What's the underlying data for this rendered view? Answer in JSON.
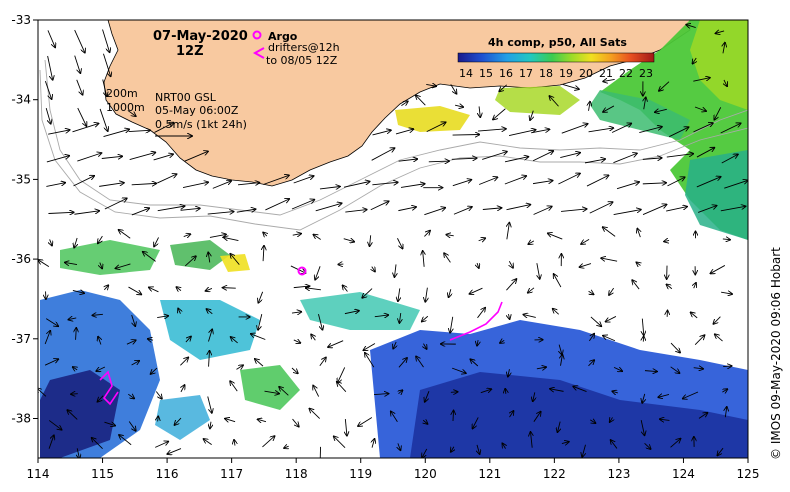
{
  "map": {
    "date_label": "07-May-2020",
    "time_label": "12Z",
    "argo_label": "Argo",
    "drifters_label": "drifters@12h",
    "drifters_sub": "to 08/05 12Z",
    "contour_labels": [
      "200m",
      "1000m"
    ],
    "nrt_label": "NRT00 GSL",
    "nrt_date": "05-May 06:00Z",
    "scale_label": "0.5m/s (1kt 24h)",
    "colorbar_title": "4h comp, p50, All Sats",
    "colorbar_ticks": [
      "14",
      "15",
      "16",
      "17",
      "18",
      "19",
      "20",
      "21",
      "22",
      "23"
    ],
    "credit": "© IMOS 09-May-2020 09:06 Hobart",
    "x_ticks": [
      "114",
      "115",
      "116",
      "117",
      "118",
      "119",
      "120",
      "121",
      "122",
      "123",
      "124",
      "125"
    ],
    "y_ticks": [
      "-33",
      "-34",
      "-35",
      "-36",
      "-37",
      "-38"
    ],
    "colors": {
      "land": "#f8c9a0",
      "argo": "#ff00ff",
      "drifter": "#ff00ff"
    }
  }
}
